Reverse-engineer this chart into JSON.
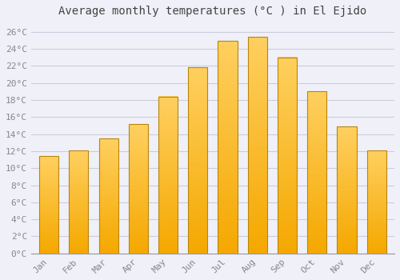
{
  "title": "Average monthly temperatures (°C ) in El Ejido",
  "months": [
    "Jan",
    "Feb",
    "Mar",
    "Apr",
    "May",
    "Jun",
    "Jul",
    "Aug",
    "Sep",
    "Oct",
    "Nov",
    "Dec"
  ],
  "values": [
    11.4,
    12.1,
    13.5,
    15.2,
    18.4,
    21.8,
    24.9,
    25.4,
    23.0,
    19.0,
    14.9,
    12.1
  ],
  "bar_color_top": "#FFD060",
  "bar_color_bottom": "#F5A800",
  "bar_edge_color": "#B8860B",
  "background_color": "#F0F0F8",
  "plot_bg_color": "#F0F0F8",
  "grid_color": "#CCCCDD",
  "tick_label_color": "#888888",
  "title_color": "#444444",
  "ylim": [
    0,
    27
  ],
  "yticks": [
    0,
    2,
    4,
    6,
    8,
    10,
    12,
    14,
    16,
    18,
    20,
    22,
    24,
    26
  ],
  "title_fontsize": 10,
  "tick_fontsize": 8,
  "font_family": "monospace"
}
